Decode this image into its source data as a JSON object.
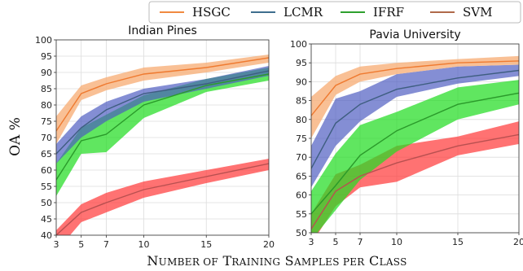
{
  "figure": {
    "xlabel_parts": [
      {
        "cap": "N",
        "rest": "umber of"
      },
      {
        "cap": "T",
        "rest": "raining"
      },
      {
        "cap": "S",
        "rest": "amples per"
      },
      {
        "cap": "C",
        "rest": "lass"
      }
    ],
    "xlabel": "Number of Training Samples per Class",
    "ylabel": "OA %"
  },
  "legend": [
    {
      "name": "HSGC",
      "color": "#f08a40"
    },
    {
      "name": "LCMR",
      "color": "#3e6e8e"
    },
    {
      "name": "IFRF",
      "color": "#2ea02e"
    },
    {
      "name": "SVM",
      "color": "#b06a4a"
    }
  ],
  "chart_data": [
    {
      "type": "line",
      "title": "Indian Pines",
      "xlabel": "",
      "ylabel": "",
      "x": [
        3,
        5,
        7,
        10,
        15,
        20
      ],
      "xlim": [
        3,
        20
      ],
      "ylim": [
        40,
        100
      ],
      "xticks": [
        3,
        5,
        7,
        10,
        15,
        20
      ],
      "yticks": [
        40,
        45,
        50,
        55,
        60,
        65,
        70,
        75,
        80,
        85,
        90,
        95,
        100
      ],
      "grid": true,
      "series": [
        {
          "name": "SVM",
          "color": "#b85050",
          "band_color": "#ff3b3b",
          "band_opacity": 0.72,
          "values": [
            40,
            47,
            50,
            54,
            58,
            62
          ],
          "lower": [
            35,
            44,
            47,
            51.5,
            56,
            60
          ],
          "upper": [
            41.5,
            49.5,
            53,
            56.5,
            60,
            63.5
          ]
        },
        {
          "name": "IFRF",
          "color": "#2a9a2a",
          "band_color": "#22dd22",
          "band_opacity": 0.72,
          "values": [
            57,
            69,
            71,
            80,
            86,
            89.5
          ],
          "lower": [
            52,
            65,
            65.5,
            76,
            84,
            87.5
          ],
          "upper": [
            62,
            73,
            77,
            83,
            88,
            91.5
          ]
        },
        {
          "name": "LCMR",
          "color": "#3e5e80",
          "band_color": "#4a58c0",
          "band_opacity": 0.68,
          "values": [
            65,
            73,
            78.5,
            83.5,
            86.5,
            90.5
          ],
          "lower": [
            62,
            70,
            75,
            81,
            85,
            89
          ],
          "upper": [
            68,
            76.5,
            81,
            85,
            88,
            92
          ]
        },
        {
          "name": "HSGC",
          "color": "#ef7a30",
          "band_color": "#f7b07a",
          "band_opacity": 0.8,
          "values": [
            72,
            83.5,
            86.5,
            89.5,
            91.5,
            94.5
          ],
          "lower": [
            68,
            81.5,
            84.5,
            87.5,
            90,
            93
          ],
          "upper": [
            76.5,
            86,
            88.5,
            91.5,
            93,
            95.5
          ]
        }
      ]
    },
    {
      "type": "line",
      "title": "Pavia University",
      "xlabel": "",
      "ylabel": "",
      "x": [
        3,
        5,
        7,
        10,
        15,
        20
      ],
      "xlim": [
        3,
        20
      ],
      "ylim": [
        50,
        100
      ],
      "xticks": [
        3,
        5,
        7,
        10,
        15,
        20
      ],
      "yticks": [
        50,
        55,
        60,
        65,
        70,
        75,
        80,
        85,
        90,
        95,
        100
      ],
      "grid": true,
      "series": [
        {
          "name": "SVM",
          "color": "#b85050",
          "band_color": "#ff3b3b",
          "band_opacity": 0.72,
          "values": [
            51,
            61,
            65,
            68.5,
            73,
            76
          ],
          "lower": [
            47,
            57,
            62,
            63.5,
            70.5,
            73.5
          ],
          "upper": [
            55,
            65.5,
            68,
            73,
            75.5,
            79.5
          ]
        },
        {
          "name": "IFRF",
          "color": "#2a9a2a",
          "band_color": "#22dd22",
          "band_opacity": 0.72,
          "values": [
            55,
            62.5,
            70.5,
            77,
            84,
            87
          ],
          "lower": [
            48,
            56,
            64,
            71.5,
            80,
            84
          ],
          "upper": [
            61,
            71,
            78.5,
            82,
            88.5,
            90.5
          ]
        },
        {
          "name": "LCMR",
          "color": "#3e5e80",
          "band_color": "#4a58c0",
          "band_opacity": 0.68,
          "values": [
            67,
            79,
            84,
            88,
            91,
            93
          ],
          "lower": [
            62,
            73,
            79.5,
            86,
            89.5,
            91.5
          ],
          "upper": [
            73,
            85.5,
            87.5,
            92,
            94,
            94.5
          ]
        },
        {
          "name": "HSGC",
          "color": "#ef7a30",
          "band_color": "#f7b07a",
          "band_opacity": 0.8,
          "values": [
            81,
            89,
            92,
            93.5,
            95,
            95.5
          ],
          "lower": [
            75,
            86.5,
            90,
            92,
            94,
            94.5
          ],
          "upper": [
            86,
            91.5,
            94,
            95,
            96,
            96.8
          ]
        }
      ]
    }
  ]
}
